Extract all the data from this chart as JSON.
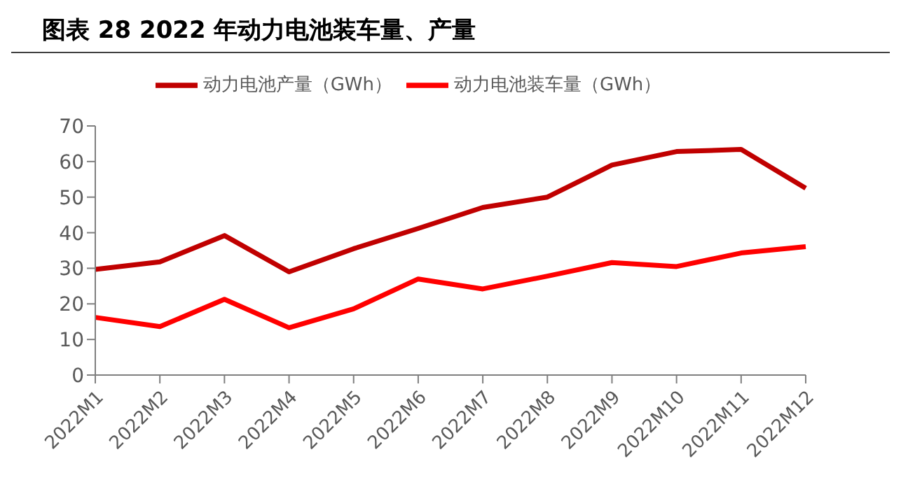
{
  "chart_data": {
    "type": "line",
    "title": "图表 28 2022 年动力电池装车量、产量",
    "categories": [
      "2022M1",
      "2022M2",
      "2022M3",
      "2022M4",
      "2022M5",
      "2022M6",
      "2022M7",
      "2022M8",
      "2022M9",
      "2022M10",
      "2022M11",
      "2022M12"
    ],
    "series": [
      {
        "name": "动力电池产量（GWh）",
        "color": "#c00000",
        "values": [
          29.7,
          31.8,
          39.2,
          29.0,
          35.5,
          41.2,
          47.1,
          50.0,
          59.0,
          62.8,
          63.4,
          52.5
        ]
      },
      {
        "name": "动力电池装车量（GWh）",
        "color": "#ff0000",
        "values": [
          16.2,
          13.6,
          21.3,
          13.3,
          18.6,
          27.0,
          24.2,
          27.8,
          31.6,
          30.5,
          34.3,
          36.1
        ]
      }
    ],
    "ylim": [
      0,
      70
    ],
    "yticks": [
      0,
      10,
      20,
      30,
      40,
      50,
      60,
      70
    ],
    "grid": false,
    "legend": "top",
    "marker": "none",
    "line_style": "solid"
  }
}
